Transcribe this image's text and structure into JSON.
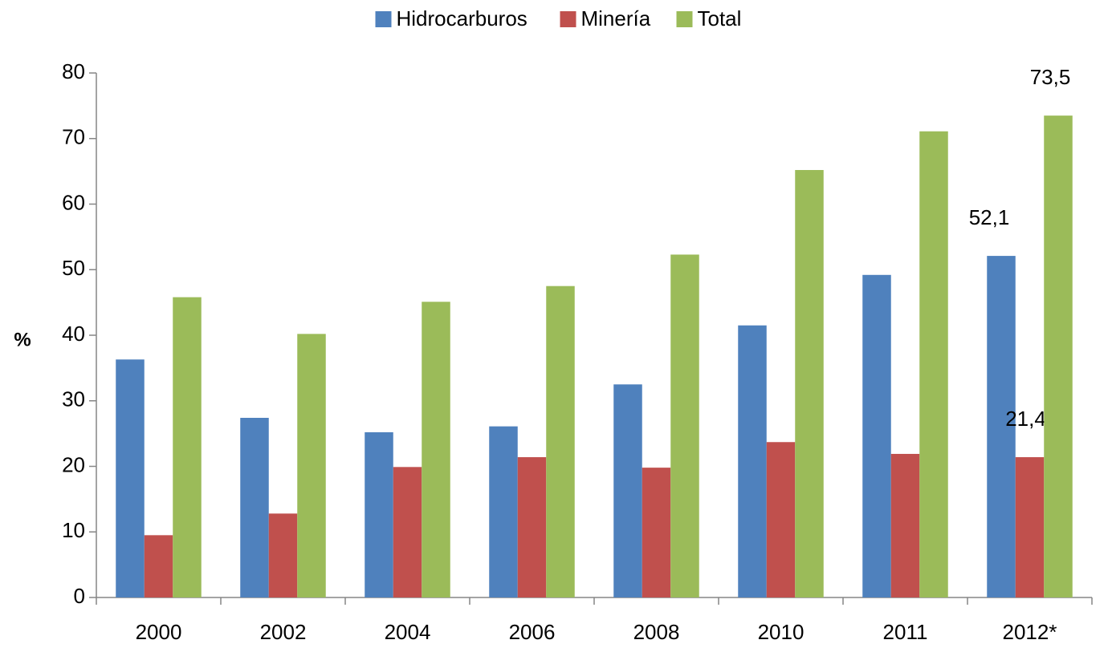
{
  "chart_data": {
    "type": "bar",
    "y_label": "%",
    "categories": [
      "2000",
      "2002",
      "2004",
      "2006",
      "2008",
      "2010",
      "2011",
      "2012*"
    ],
    "series": [
      {
        "name": "Hidrocarburos",
        "color": "#4f81bd",
        "values": [
          36.3,
          27.4,
          25.2,
          26.1,
          32.5,
          41.5,
          49.2,
          52.1
        ],
        "value_labels": [
          null,
          null,
          null,
          null,
          null,
          null,
          null,
          "52,1"
        ]
      },
      {
        "name": "Minería",
        "color": "#c0504d",
        "values": [
          9.5,
          12.8,
          19.9,
          21.4,
          19.8,
          23.7,
          21.9,
          21.4
        ],
        "value_labels": [
          null,
          null,
          null,
          null,
          null,
          null,
          null,
          "21,4"
        ]
      },
      {
        "name": "Total",
        "color": "#9bbb59",
        "values": [
          45.8,
          40.2,
          45.1,
          47.5,
          52.3,
          65.2,
          71.1,
          73.5
        ],
        "value_labels": [
          null,
          null,
          null,
          null,
          null,
          null,
          null,
          "73,5"
        ]
      }
    ],
    "ylim": [
      0,
      80
    ],
    "yticks": [
      0,
      10,
      20,
      30,
      40,
      50,
      60,
      70,
      80
    ],
    "grid": false,
    "legend": "top"
  }
}
